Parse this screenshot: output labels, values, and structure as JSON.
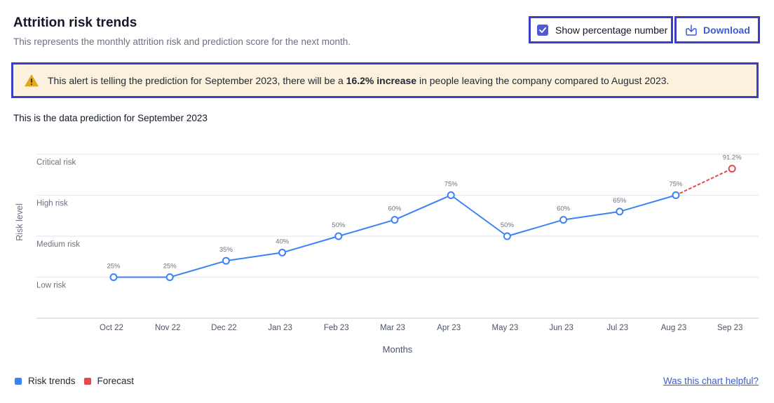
{
  "header": {
    "title": "Attrition risk trends",
    "subtitle": "This represents the monthly attrition risk and prediction score for the next month."
  },
  "controls": {
    "show_percentage_label": "Show percentage number",
    "show_percentage_checked": true,
    "download_label": "Download"
  },
  "alert": {
    "text_before": "This alert is telling the prediction for September 2023, there will be a ",
    "text_bold": "16.2% increase",
    "text_after": " in people leaving the company compared to August 2023."
  },
  "section_text": "This is the data prediction for September 2023",
  "legend": {
    "risk_trends": "Risk trends",
    "forecast": "Forecast"
  },
  "helpful_link": "Was this chart helpful?",
  "colors": {
    "risk_trends": "#3b82f6",
    "forecast": "#e5484d",
    "accent": "#3b3fc4",
    "alert_bg": "#fbf1dc"
  },
  "chart_data": {
    "type": "line",
    "xlabel": "Months",
    "ylabel": "Risk level",
    "y_levels": [
      "Low risk",
      "Medium risk",
      "High risk",
      "Critical risk"
    ],
    "ylim": [
      0,
      100
    ],
    "grid": true,
    "categories": [
      "Oct 22",
      "Nov 22",
      "Dec 22",
      "Jan 23",
      "Feb 23",
      "Mar 23",
      "Apr 23",
      "May 23",
      "Jun 23",
      "Jul 23",
      "Aug 23",
      "Sep 23"
    ],
    "series": [
      {
        "name": "Risk trends",
        "color": "#3b82f6",
        "x": [
          "Oct 22",
          "Nov 22",
          "Dec 22",
          "Jan 23",
          "Feb 23",
          "Mar 23",
          "Apr 23",
          "May 23",
          "Jun 23",
          "Jul 23",
          "Aug 23"
        ],
        "values": [
          25,
          25,
          35,
          40,
          50,
          60,
          75,
          50,
          60,
          65,
          75
        ],
        "labels": [
          "25%",
          "25%",
          "35%",
          "40%",
          "50%",
          "60%",
          "75%",
          "50%",
          "60%",
          "65%",
          "75%"
        ]
      },
      {
        "name": "Forecast",
        "color": "#e5484d",
        "dashed": true,
        "x": [
          "Aug 23",
          "Sep 23"
        ],
        "values": [
          75,
          91.2
        ],
        "labels": [
          "",
          "91.2%"
        ]
      }
    ]
  }
}
